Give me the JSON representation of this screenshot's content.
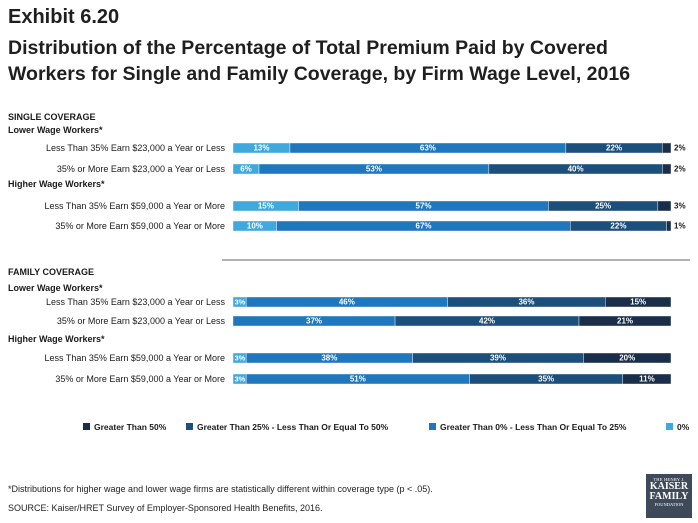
{
  "header": {
    "exhibit": "Exhibit 6.20",
    "title": "Distribution of the Percentage of Total Premium Paid by Covered Workers for Single and Family Coverage, by Firm Wage Level, 2016"
  },
  "footnote": "*Distributions for higher wage and lower wage firms are statistically different within coverage type (p < .05).",
  "source": "SOURCE:  Kaiser/HRET Survey of Employer-Sponsored Health Benefits, 2016.",
  "logo": {
    "line1": "THE HENRY J.",
    "line2a": "KAISER",
    "line2b": "FAMILY",
    "line3": "FOUNDATION"
  },
  "colors": {
    "zero": "#3fa9de",
    "gt0_le25": "#1f78be",
    "gt25_le50": "#1c4f7c",
    "gt50": "#1a2e4a"
  },
  "chart_data": {
    "type": "bar",
    "orientation": "horizontal",
    "stacked": true,
    "percent_stacked": true,
    "legend": [
      "Greater Than 50%",
      "Greater Than 25% - Less Than Or Equal To 50%",
      "Greater Than 0% - Less Than Or Equal To 25%",
      "0%"
    ],
    "legend_position": "bottom",
    "series_order": [
      "0%",
      "Greater Than 0% - Less Than Or Equal To 25%",
      "Greater Than 25% - Less Than Or Equal To 50%",
      "Greater Than 50%"
    ],
    "sections": [
      {
        "label": "SINGLE COVERAGE",
        "groups": [
          {
            "label": "Lower Wage Workers*",
            "rows": [
              {
                "label": "Less Than 35% Earn $23,000 a Year or Less",
                "values": [
                  13,
                  63,
                  22,
                  2
                ],
                "labels": [
                  "13%",
                  "63%",
                  "22%",
                  "2%"
                ]
              },
              {
                "label": "35% or More Earn $23,000 a Year or Less",
                "values": [
                  6,
                  53,
                  40,
                  2
                ],
                "labels": [
                  "6%",
                  "53%",
                  "40%",
                  "2%"
                ]
              }
            ]
          },
          {
            "label": "Higher Wage Workers*",
            "rows": [
              {
                "label": "Less Than 35% Earn $59,000 a Year or More",
                "values": [
                  15,
                  57,
                  25,
                  3
                ],
                "labels": [
                  "15%",
                  "57%",
                  "25%",
                  "3%"
                ]
              },
              {
                "label": "35% or More Earn $59,000 a Year or More",
                "values": [
                  10,
                  67,
                  22,
                  1
                ],
                "labels": [
                  "10%",
                  "67%",
                  "22%",
                  "1%"
                ]
              }
            ]
          }
        ]
      },
      {
        "label": "FAMILY COVERAGE",
        "groups": [
          {
            "label": "Lower Wage Workers*",
            "rows": [
              {
                "label": "Less Than 35% Earn $23,000 a Year or Less",
                "values": [
                  3,
                  46,
                  36,
                  15
                ],
                "labels": [
                  "3%",
                  "46%",
                  "36%",
                  "15%"
                ]
              },
              {
                "label": "35% or More Earn $23,000 a Year or Less",
                "values": [
                  0,
                  37,
                  42,
                  21
                ],
                "labels": [
                  "",
                  "37%",
                  "42%",
                  "21%"
                ]
              }
            ]
          },
          {
            "label": "Higher Wage Workers*",
            "rows": [
              {
                "label": "Less Than 35% Earn $59,000 a Year or More",
                "values": [
                  3,
                  38,
                  39,
                  20
                ],
                "labels": [
                  "3%",
                  "38%",
                  "39%",
                  "20%"
                ]
              },
              {
                "label": "35% or More Earn $59,000 a Year or More",
                "values": [
                  3,
                  51,
                  35,
                  11
                ],
                "labels": [
                  "3%",
                  "51%",
                  "35%",
                  "11%"
                ]
              }
            ]
          }
        ]
      }
    ]
  }
}
